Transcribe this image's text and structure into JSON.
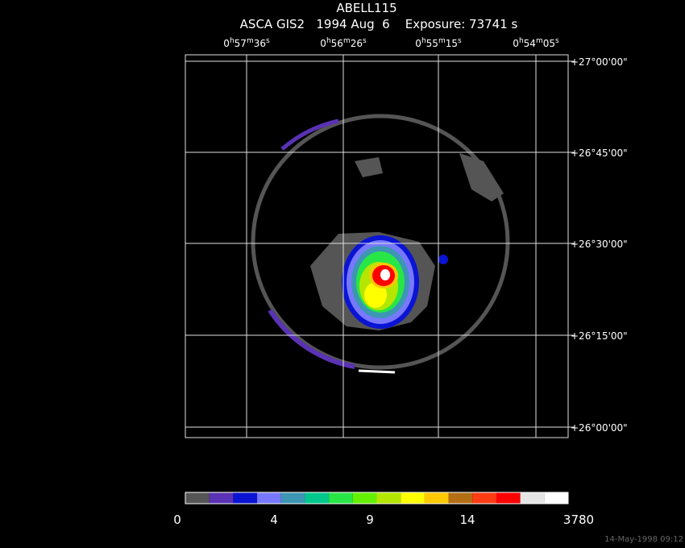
{
  "header": {
    "title": "ABELL115",
    "subtitle": "ASCA GIS2   1994 Aug  6    Exposure: 73741 s"
  },
  "ra_labels": [
    [
      "0",
      "h",
      "57",
      "m",
      "36",
      "s"
    ],
    [
      "0",
      "h",
      "56",
      "m",
      "26",
      "s"
    ],
    [
      "0",
      "h",
      "55",
      "m",
      "15",
      "s"
    ],
    [
      "0",
      "h",
      "54",
      "m",
      "05",
      "s"
    ]
  ],
  "dec_labels": [
    "+27°00'00\"",
    "+26°45'00\"",
    "+26°30'00\"",
    "+26°15'00\"",
    "+26°00'00\""
  ],
  "colorbar": {
    "labels": [
      "0",
      "4",
      "9",
      "14",
      "3780"
    ],
    "colors": [
      "#555555",
      "#5a32b4",
      "#0a14d2",
      "#7878ff",
      "#3c96b4",
      "#00c88c",
      "#28e646",
      "#64f000",
      "#b4e600",
      "#ffff00",
      "#ffc800",
      "#b46e14",
      "#ff3c14",
      "#ff0000",
      "#e6e6e6",
      "#ffffff"
    ]
  },
  "footer": {
    "timestamp": "14-May-1998 09:12"
  }
}
